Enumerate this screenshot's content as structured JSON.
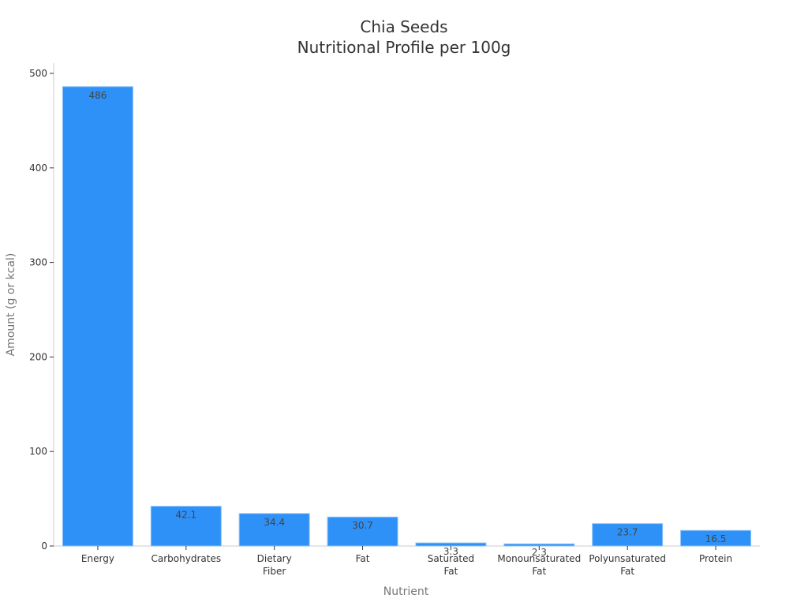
{
  "chart_data": {
    "type": "bar",
    "title": "Chia Seeds",
    "subtitle": "Nutritional Profile per 100g",
    "xlabel": "Nutrient",
    "ylabel": "Amount (g or kcal)",
    "categories": [
      "Energy",
      "Carbohydrates",
      "Dietary Fiber",
      "Fat",
      "Saturated Fat",
      "Monounsaturated Fat",
      "Polyunsaturated Fat",
      "Protein"
    ],
    "category_lines": [
      [
        "Energy"
      ],
      [
        "Carbohydrates"
      ],
      [
        "Dietary",
        "Fiber"
      ],
      [
        "Fat"
      ],
      [
        "Saturated",
        "Fat"
      ],
      [
        "Monounsaturated",
        "Fat"
      ],
      [
        "Polyunsaturated",
        "Fat"
      ],
      [
        "Protein"
      ]
    ],
    "values": [
      486,
      42.1,
      34.4,
      30.7,
      3.3,
      2.3,
      23.7,
      16.5
    ],
    "data_labels": [
      "486",
      "42.1",
      "34.4",
      "30.7",
      "3.3",
      "2.3",
      "23.7",
      "16.5"
    ],
    "ylim": [
      0,
      510
    ],
    "yticks": [
      0,
      100,
      200,
      300,
      400,
      500
    ],
    "grid": false,
    "legend": null,
    "bar_color": "#2e91f7"
  }
}
